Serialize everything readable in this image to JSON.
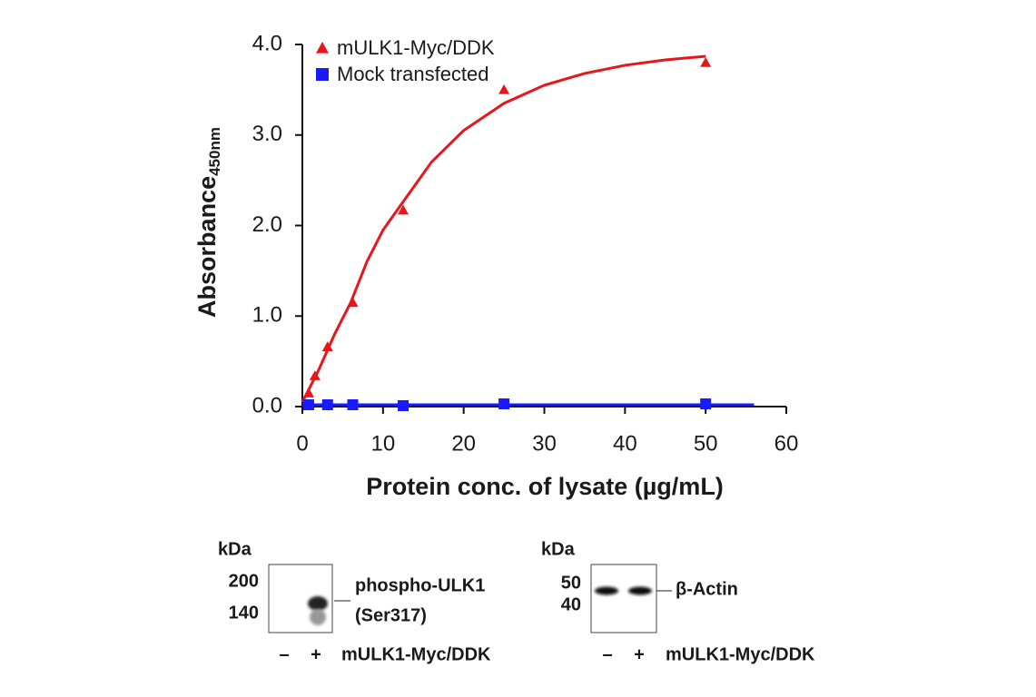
{
  "chart_data": {
    "type": "scatter",
    "y_label": "Absorbance",
    "y_label_sub": "450nm",
    "x_label": "Protein conc. of lysate (µg/mL)",
    "xlim": [
      0,
      60
    ],
    "xticks": [
      0,
      10,
      20,
      30,
      40,
      50,
      60
    ],
    "ylim": [
      0,
      4
    ],
    "yticks": [
      {
        "value": 0,
        "label": "0.0"
      },
      {
        "value": 1,
        "label": "1.0"
      },
      {
        "value": 2,
        "label": "2.0"
      },
      {
        "value": 3,
        "label": "3.0"
      },
      {
        "value": 4,
        "label": "4.0"
      }
    ],
    "legend": "upper left",
    "series": [
      {
        "name": "mULK1-Myc/DDK",
        "color": "#e8161b",
        "marker": "triangle",
        "x": [
          0.78,
          1.56,
          3.125,
          6.25,
          12.5,
          25,
          50
        ],
        "values": [
          0.15,
          0.34,
          0.66,
          1.15,
          2.17,
          3.5,
          3.8
        ],
        "fit_x": [
          0,
          2,
          4,
          6,
          8,
          10,
          12,
          14,
          16,
          20,
          25,
          30,
          35,
          40,
          45,
          50
        ],
        "fit_values": [
          0.05,
          0.4,
          0.8,
          1.15,
          1.6,
          1.95,
          2.2,
          2.45,
          2.7,
          3.05,
          3.35,
          3.55,
          3.68,
          3.77,
          3.83,
          3.87
        ]
      },
      {
        "name": "Mock transfected",
        "color": "#1a1aff",
        "marker": "square",
        "x": [
          0.78,
          3.125,
          6.25,
          12.5,
          25,
          50
        ],
        "values": [
          0.02,
          0.02,
          0.02,
          0.01,
          0.03,
          0.03
        ],
        "fit_x": [
          0,
          56
        ],
        "fit_values": [
          0.02,
          0.02
        ]
      }
    ]
  },
  "blots": [
    {
      "kda": "kDa",
      "markers": [
        200,
        140
      ],
      "band_label": [
        "phospho-ULK1",
        "(Ser317)"
      ],
      "lanes": [
        "–",
        "+"
      ],
      "condition": "mULK1-Myc/DDK"
    },
    {
      "kda": "kDa",
      "markers": [
        50,
        40
      ],
      "band_label": [
        "β-Actin"
      ],
      "lanes": [
        "–",
        "+"
      ],
      "condition": "mULK1-Myc/DDK"
    }
  ]
}
